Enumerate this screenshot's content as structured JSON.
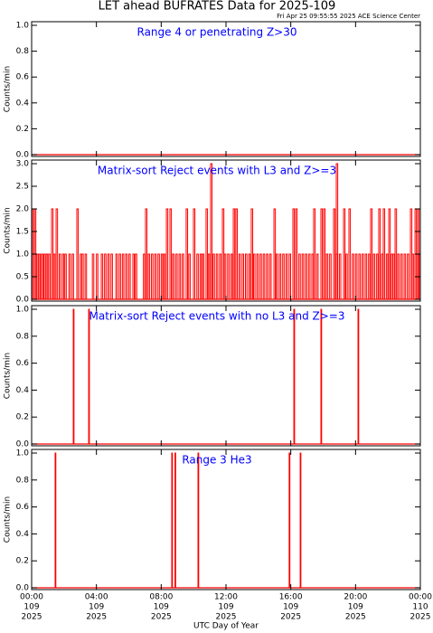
{
  "title": "LET ahead BUFRATES Data for 2025-109",
  "subtitle": "Fri Apr 25 09:55:55 2025 ACE Science Center",
  "chart_data": [
    {
      "type": "line",
      "title": "Range 4 or   penetrating Z>30",
      "ylabel": "Counts/min",
      "xlim": [
        0,
        24
      ],
      "ylim": [
        0,
        1
      ],
      "yticks": [
        {
          "value": 0,
          "label": "0.0"
        },
        {
          "value": 0.2,
          "label": "0.2"
        },
        {
          "value": 0.4,
          "label": "0.4"
        },
        {
          "value": 0.6,
          "label": "0.6"
        },
        {
          "value": 0.8,
          "label": "0.8"
        },
        {
          "value": 1,
          "label": "1.0"
        }
      ],
      "series": [
        {
          "color": "#ff0000",
          "x": [],
          "values": []
        }
      ]
    },
    {
      "type": "line",
      "title": "Matrix-sort Reject events with L3 and Z>=3",
      "ylabel": "Counts/min",
      "xlim": [
        0,
        24
      ],
      "ylim": [
        0,
        3
      ],
      "yticks": [
        {
          "value": 0,
          "label": "0.0"
        },
        {
          "value": 0.5,
          "label": "0.5"
        },
        {
          "value": 1,
          "label": "1.0"
        },
        {
          "value": 1.5,
          "label": "1.5"
        },
        {
          "value": 2,
          "label": "2.0"
        },
        {
          "value": 2.5,
          "label": "2.5"
        },
        {
          "value": 3,
          "label": "3.0"
        }
      ],
      "series": [
        {
          "color": "#ff0000",
          "x": [
            0.3,
            0.45,
            0.6,
            0.75,
            0.9,
            1.05,
            1.35,
            1.7,
            1.9,
            2.05,
            2.3,
            2.5,
            3.0,
            3.1,
            3.3,
            3.75,
            4.0,
            4.3,
            4.5,
            4.7,
            4.9,
            5.2,
            5.4,
            5.6,
            5.8,
            6.0,
            6.25,
            6.4,
            6.9,
            7.2,
            7.4,
            7.6,
            7.8,
            8.0,
            8.15,
            8.7,
            8.9,
            9.1,
            9.3,
            9.7,
            10.2,
            10.4,
            10.55,
            10.9,
            11.2,
            11.4,
            11.6,
            11.9,
            12.1,
            12.3,
            12.8,
            13.0,
            13.2,
            13.4,
            13.7,
            13.9,
            14.1,
            14.3,
            14.5,
            14.7,
            15.1,
            15.3,
            15.5,
            15.7,
            15.9,
            16.5,
            16.7,
            16.9,
            17.1,
            17.3,
            17.6,
            18.2,
            18.4,
            18.8,
            19.0,
            19.4,
            19.8,
            20.0,
            20.2,
            20.4,
            20.6,
            20.8,
            21.1,
            21.3,
            21.6,
            21.9,
            22.2,
            22.3,
            22.6,
            22.8,
            23.0,
            23.2,
            23.5,
            23.9,
            0.06,
            0.17,
            1.23,
            1.51,
            2.79,
            7.03,
            8.32,
            8.54,
            9.54,
            9.99,
            10.77,
            11.78,
            12.45,
            12.61,
            13.56,
            14.96,
            16.13,
            16.3,
            17.41,
            17.86,
            18.03,
            18.64,
            19.26,
            19.59,
            20.93,
            21.43,
            21.71,
            22.05,
            22.44,
            23.39,
            23.67,
            23.83,
            11.05,
            18.81
          ],
          "values": [
            1,
            1,
            1,
            1,
            1,
            1,
            1,
            1,
            1,
            1,
            1,
            1,
            1,
            1,
            1,
            1,
            1,
            1,
            1,
            1,
            1,
            1,
            1,
            1,
            1,
            1,
            1,
            1,
            1,
            1,
            1,
            1,
            1,
            1,
            1,
            1,
            1,
            1,
            1,
            1,
            1,
            1,
            1,
            1,
            1,
            1,
            1,
            1,
            1,
            1,
            1,
            1,
            1,
            1,
            1,
            1,
            1,
            1,
            1,
            1,
            1,
            1,
            1,
            1,
            1,
            1,
            1,
            1,
            1,
            1,
            1,
            1,
            1,
            1,
            1,
            1,
            1,
            1,
            1,
            1,
            1,
            1,
            1,
            1,
            1,
            1,
            1,
            1,
            1,
            1,
            1,
            1,
            1,
            1,
            2,
            2,
            2,
            2,
            2,
            2,
            2,
            2,
            2,
            2,
            2,
            2,
            2,
            2,
            2,
            2,
            2,
            2,
            2,
            2,
            2,
            2,
            2,
            2,
            2,
            2,
            2,
            2,
            2,
            2,
            2,
            2,
            3,
            3
          ]
        }
      ]
    },
    {
      "type": "line",
      "title": "Matrix-sort Reject events with no L3 and Z>=3",
      "ylabel": "Counts/min",
      "xlim": [
        0,
        24
      ],
      "ylim": [
        0,
        1
      ],
      "yticks": [
        {
          "value": 0,
          "label": "0.0"
        },
        {
          "value": 0.2,
          "label": "0.2"
        },
        {
          "value": 0.4,
          "label": "0.4"
        },
        {
          "value": 0.6,
          "label": "0.6"
        },
        {
          "value": 0.8,
          "label": "0.8"
        },
        {
          "value": 1,
          "label": "1.0"
        }
      ],
      "series": [
        {
          "color": "#ff0000",
          "x": [
            2.57,
            3.52,
            16.19,
            17.86,
            20.15
          ],
          "values": [
            1,
            1,
            1,
            1,
            1
          ]
        }
      ]
    },
    {
      "type": "line",
      "title": "Range 3 He3",
      "ylabel": "Counts/min",
      "xlabel": "UTC Day of Year",
      "xlim": [
        0,
        24
      ],
      "ylim": [
        0,
        1
      ],
      "yticks": [
        {
          "value": 0,
          "label": "0.0"
        },
        {
          "value": 0.2,
          "label": "0.2"
        },
        {
          "value": 0.4,
          "label": "0.4"
        },
        {
          "value": 0.6,
          "label": "0.6"
        },
        {
          "value": 0.8,
          "label": "0.8"
        },
        {
          "value": 1,
          "label": "1.0"
        }
      ],
      "xticks": [
        {
          "value": 0,
          "label": "00:00"
        },
        {
          "value": 4,
          "label": "04:00"
        },
        {
          "value": 8,
          "label": "08:00"
        },
        {
          "value": 12,
          "label": "12:00"
        },
        {
          "value": 16,
          "label": "16:00"
        },
        {
          "value": 20,
          "label": "20:00"
        },
        {
          "value": 24,
          "label": "00:00"
        }
      ],
      "xtick_days": [
        "109",
        "109",
        "109",
        "109",
        "109",
        "109",
        "110"
      ],
      "xtick_years": [
        "2025",
        "2025",
        "2025",
        "2025",
        "2025",
        "2025",
        "2025"
      ],
      "series": [
        {
          "color": "#ff0000",
          "x": [
            1.45,
            8.65,
            8.85,
            10.27,
            15.9,
            16.58
          ],
          "values": [
            1,
            1,
            1,
            1,
            1,
            1
          ]
        }
      ]
    }
  ]
}
